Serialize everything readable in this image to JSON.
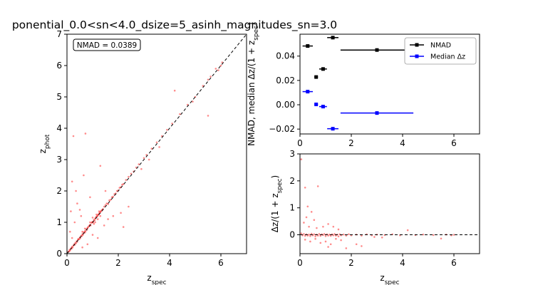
{
  "figure": {
    "title": "ponential_0.0<sn<4.0_dsize=5_asinh_magnitudes_sn=3.0"
  },
  "chart_data": [
    {
      "type": "scatter",
      "xlabel": "z_spec",
      "ylabel": "z_phot",
      "xlim": [
        0,
        7
      ],
      "ylim": [
        0,
        7
      ],
      "xticks": [
        0,
        2,
        4,
        6
      ],
      "yticks": [
        0,
        1,
        2,
        3,
        4,
        5,
        6,
        7
      ],
      "annotation": "NMAD = 0.0389",
      "annotation_placement": "top-left",
      "point_color": "#ff0000",
      "reference_line": {
        "x": [
          0,
          7
        ],
        "y": [
          0,
          7
        ],
        "style": "dashed",
        "color": "#000000"
      },
      "points": [
        {
          "x": 0.05,
          "y": 0.06
        },
        {
          "x": 0.08,
          "y": 0.07
        },
        {
          "x": 0.1,
          "y": 0.12
        },
        {
          "x": 0.12,
          "y": 0.1
        },
        {
          "x": 0.15,
          "y": 0.17
        },
        {
          "x": 0.18,
          "y": 0.16
        },
        {
          "x": 0.2,
          "y": 0.22
        },
        {
          "x": 0.22,
          "y": 0.2
        },
        {
          "x": 0.25,
          "y": 0.26
        },
        {
          "x": 0.28,
          "y": 0.3
        },
        {
          "x": 0.3,
          "y": 0.28
        },
        {
          "x": 0.33,
          "y": 0.35
        },
        {
          "x": 0.35,
          "y": 0.33
        },
        {
          "x": 0.38,
          "y": 0.4
        },
        {
          "x": 0.4,
          "y": 0.38
        },
        {
          "x": 0.43,
          "y": 0.45
        },
        {
          "x": 0.45,
          "y": 0.47
        },
        {
          "x": 0.48,
          "y": 0.46
        },
        {
          "x": 0.5,
          "y": 0.52
        },
        {
          "x": 0.52,
          "y": 0.5
        },
        {
          "x": 0.55,
          "y": 0.57
        },
        {
          "x": 0.58,
          "y": 0.56
        },
        {
          "x": 0.6,
          "y": 0.62
        },
        {
          "x": 0.62,
          "y": 0.6
        },
        {
          "x": 0.65,
          "y": 0.68
        },
        {
          "x": 0.68,
          "y": 0.66
        },
        {
          "x": 0.7,
          "y": 0.72
        },
        {
          "x": 0.72,
          "y": 0.7
        },
        {
          "x": 0.75,
          "y": 0.78
        },
        {
          "x": 0.78,
          "y": 0.76
        },
        {
          "x": 0.8,
          "y": 0.82
        },
        {
          "x": 0.82,
          "y": 0.84
        },
        {
          "x": 0.85,
          "y": 0.87
        },
        {
          "x": 0.88,
          "y": 0.9
        },
        {
          "x": 0.9,
          "y": 0.92
        },
        {
          "x": 0.92,
          "y": 0.9
        },
        {
          "x": 0.95,
          "y": 0.98
        },
        {
          "x": 0.98,
          "y": 1.0
        },
        {
          "x": 1.0,
          "y": 1.02
        },
        {
          "x": 1.02,
          "y": 1.0
        },
        {
          "x": 1.05,
          "y": 1.08
        },
        {
          "x": 1.08,
          "y": 1.06
        },
        {
          "x": 1.1,
          "y": 1.12
        },
        {
          "x": 1.12,
          "y": 1.15
        },
        {
          "x": 1.15,
          "y": 1.18
        },
        {
          "x": 1.18,
          "y": 1.2
        },
        {
          "x": 1.2,
          "y": 1.22
        },
        {
          "x": 1.22,
          "y": 1.25
        },
        {
          "x": 1.25,
          "y": 1.28
        },
        {
          "x": 1.28,
          "y": 1.3
        },
        {
          "x": 1.3,
          "y": 1.33
        },
        {
          "x": 1.32,
          "y": 1.35
        },
        {
          "x": 1.35,
          "y": 1.38
        },
        {
          "x": 1.38,
          "y": 1.4
        },
        {
          "x": 1.4,
          "y": 1.42
        },
        {
          "x": 1.0,
          "y": 1.15
        },
        {
          "x": 1.05,
          "y": 0.95
        },
        {
          "x": 1.1,
          "y": 1.0
        },
        {
          "x": 0.9,
          "y": 1.0
        },
        {
          "x": 1.2,
          "y": 1.1
        },
        {
          "x": 1.3,
          "y": 1.2
        },
        {
          "x": 1.25,
          "y": 1.35
        },
        {
          "x": 0.7,
          "y": 0.8
        },
        {
          "x": 0.6,
          "y": 0.7
        },
        {
          "x": 1.15,
          "y": 1.25
        },
        {
          "x": 1.45,
          "y": 1.5
        },
        {
          "x": 1.5,
          "y": 1.55
        },
        {
          "x": 1.55,
          "y": 1.6
        },
        {
          "x": 1.6,
          "y": 1.58
        },
        {
          "x": 1.65,
          "y": 1.7
        },
        {
          "x": 1.7,
          "y": 1.72
        },
        {
          "x": 1.75,
          "y": 1.8
        },
        {
          "x": 1.8,
          "y": 1.82
        },
        {
          "x": 1.85,
          "y": 1.9
        },
        {
          "x": 1.9,
          "y": 1.92
        },
        {
          "x": 1.95,
          "y": 2.0
        },
        {
          "x": 2.0,
          "y": 2.02
        },
        {
          "x": 2.05,
          "y": 2.1
        },
        {
          "x": 2.1,
          "y": 2.12
        },
        {
          "x": 2.15,
          "y": 2.2
        },
        {
          "x": 2.2,
          "y": 2.22
        },
        {
          "x": 2.3,
          "y": 2.35
        },
        {
          "x": 2.4,
          "y": 2.45
        },
        {
          "x": 2.5,
          "y": 2.55
        },
        {
          "x": 2.6,
          "y": 2.62
        },
        {
          "x": 2.7,
          "y": 2.75
        },
        {
          "x": 2.8,
          "y": 2.85
        },
        {
          "x": 3.0,
          "y": 3.05
        },
        {
          "x": 3.1,
          "y": 3.15
        },
        {
          "x": 3.3,
          "y": 3.35
        },
        {
          "x": 3.5,
          "y": 3.55
        },
        {
          "x": 3.7,
          "y": 3.75
        },
        {
          "x": 3.9,
          "y": 3.95
        },
        {
          "x": 4.1,
          "y": 4.15
        },
        {
          "x": 4.4,
          "y": 4.45
        },
        {
          "x": 4.7,
          "y": 4.75
        },
        {
          "x": 5.0,
          "y": 5.0
        },
        {
          "x": 5.3,
          "y": 5.35
        },
        {
          "x": 5.6,
          "y": 5.65
        },
        {
          "x": 5.8,
          "y": 5.9
        },
        {
          "x": 6.0,
          "y": 6.0
        },
        {
          "x": 5.9,
          "y": 5.85
        },
        {
          "x": 6.05,
          "y": 6.1
        },
        {
          "x": 5.5,
          "y": 5.55
        },
        {
          "x": 4.9,
          "y": 4.85
        },
        {
          "x": 0.25,
          "y": 3.75
        },
        {
          "x": 0.72,
          "y": 3.83
        },
        {
          "x": 0.2,
          "y": 2.3
        },
        {
          "x": 0.15,
          "y": 1.35
        },
        {
          "x": 0.3,
          "y": 1.0
        },
        {
          "x": 0.12,
          "y": 0.7
        },
        {
          "x": 0.55,
          "y": 1.2
        },
        {
          "x": 0.65,
          "y": 2.5
        },
        {
          "x": 0.4,
          "y": 1.6
        },
        {
          "x": 0.9,
          "y": 1.8
        },
        {
          "x": 1.3,
          "y": 2.8
        },
        {
          "x": 1.5,
          "y": 2.0
        },
        {
          "x": 1.2,
          "y": 0.5
        },
        {
          "x": 1.0,
          "y": 0.6
        },
        {
          "x": 1.8,
          "y": 1.2
        },
        {
          "x": 2.1,
          "y": 1.3
        },
        {
          "x": 2.4,
          "y": 1.5
        },
        {
          "x": 2.9,
          "y": 2.7
        },
        {
          "x": 3.2,
          "y": 3.0
        },
        {
          "x": 3.6,
          "y": 3.4
        },
        {
          "x": 4.2,
          "y": 5.2
        },
        {
          "x": 5.5,
          "y": 4.4
        },
        {
          "x": 0.35,
          "y": 2.0
        },
        {
          "x": 0.6,
          "y": 0.2
        },
        {
          "x": 0.8,
          "y": 0.3
        },
        {
          "x": 1.45,
          "y": 0.9
        },
        {
          "x": 1.6,
          "y": 1.1
        },
        {
          "x": 2.2,
          "y": 0.85
        },
        {
          "x": 0.5,
          "y": 1.4
        },
        {
          "x": 0.2,
          "y": 0.5
        }
      ]
    },
    {
      "type": "scatter",
      "xlabel": "",
      "ylabel": "NMAD, median Δz/(1 + z_spec)",
      "xlim": [
        0,
        7
      ],
      "ylim": [
        -0.024,
        0.058
      ],
      "xticks": [
        0,
        2,
        4,
        6
      ],
      "yticks": [
        -0.02,
        0.0,
        0.02,
        0.04
      ],
      "ytick_labels": [
        "−0.02",
        "0.00",
        "0.02",
        "0.04"
      ],
      "legend_placement": "top-right",
      "series": [
        {
          "name": "NMAD",
          "color": "#000000",
          "points": [
            {
              "x": 0.3,
              "y": 0.0483,
              "xerr": 0.2
            },
            {
              "x": 0.63,
              "y": 0.0228,
              "xerr": 0.07
            },
            {
              "x": 0.9,
              "y": 0.0294,
              "xerr": 0.15
            },
            {
              "x": 1.28,
              "y": 0.0552,
              "xerr": 0.22
            },
            {
              "x": 3.0,
              "y": 0.045,
              "xerr": 1.42
            }
          ]
        },
        {
          "name": "Median Δz",
          "color": "#0000ff",
          "points": [
            {
              "x": 0.3,
              "y": 0.0108,
              "xerr": 0.2
            },
            {
              "x": 0.63,
              "y": 0.0003,
              "xerr": 0.07
            },
            {
              "x": 0.9,
              "y": -0.0015,
              "xerr": 0.15
            },
            {
              "x": 1.28,
              "y": -0.0197,
              "xerr": 0.22
            },
            {
              "x": 3.0,
              "y": -0.0068,
              "xerr": 1.42
            }
          ]
        }
      ]
    },
    {
      "type": "scatter",
      "xlabel": "z_spec",
      "ylabel": "Δz/(1 + z_spec)",
      "xlim": [
        0,
        7
      ],
      "ylim": [
        -0.7,
        3.0
      ],
      "xticks": [
        0,
        2,
        4,
        6
      ],
      "yticks": [
        0,
        1,
        2,
        3
      ],
      "point_color": "#ff0000",
      "reference_line": {
        "y": 0,
        "style": "dashed",
        "color": "#000000"
      },
      "points": [
        {
          "x": 0.05,
          "y": 2.8
        },
        {
          "x": 0.2,
          "y": 1.75
        },
        {
          "x": 0.7,
          "y": 1.8
        },
        {
          "x": 0.3,
          "y": 1.05
        },
        {
          "x": 0.45,
          "y": 0.85
        },
        {
          "x": 0.25,
          "y": 0.65
        },
        {
          "x": 0.55,
          "y": 0.55
        },
        {
          "x": 0.15,
          "y": 0.45
        },
        {
          "x": 1.1,
          "y": 0.4
        },
        {
          "x": 0.9,
          "y": 0.3
        },
        {
          "x": 1.3,
          "y": 0.3
        },
        {
          "x": 0.35,
          "y": 0.3
        },
        {
          "x": 0.65,
          "y": 0.25
        },
        {
          "x": 1.5,
          "y": 0.2
        },
        {
          "x": 0.05,
          "y": 0.05
        },
        {
          "x": 0.1,
          "y": -0.02
        },
        {
          "x": 0.15,
          "y": 0.03
        },
        {
          "x": 0.2,
          "y": -0.04
        },
        {
          "x": 0.25,
          "y": 0.02
        },
        {
          "x": 0.3,
          "y": -0.03
        },
        {
          "x": 0.35,
          "y": 0.01
        },
        {
          "x": 0.4,
          "y": -0.05
        },
        {
          "x": 0.45,
          "y": 0.04
        },
        {
          "x": 0.5,
          "y": -0.02
        },
        {
          "x": 0.55,
          "y": 0.02
        },
        {
          "x": 0.6,
          "y": -0.06
        },
        {
          "x": 0.65,
          "y": 0.01
        },
        {
          "x": 0.7,
          "y": -0.03
        },
        {
          "x": 0.75,
          "y": 0.03
        },
        {
          "x": 0.8,
          "y": -0.04
        },
        {
          "x": 0.85,
          "y": 0.02
        },
        {
          "x": 0.9,
          "y": -0.01
        },
        {
          "x": 0.95,
          "y": 0.03
        },
        {
          "x": 1.0,
          "y": -0.05
        },
        {
          "x": 1.05,
          "y": 0.02
        },
        {
          "x": 1.1,
          "y": -0.03
        },
        {
          "x": 1.15,
          "y": 0.01
        },
        {
          "x": 1.2,
          "y": -0.04
        },
        {
          "x": 1.25,
          "y": 0.02
        },
        {
          "x": 1.3,
          "y": -0.02
        },
        {
          "x": 1.35,
          "y": 0.03
        },
        {
          "x": 1.4,
          "y": -0.03
        },
        {
          "x": 1.45,
          "y": 0.01
        },
        {
          "x": 1.5,
          "y": -0.06
        },
        {
          "x": 1.55,
          "y": 0.02
        },
        {
          "x": 1.6,
          "y": -0.02
        },
        {
          "x": 1.7,
          "y": 0.01
        },
        {
          "x": 1.8,
          "y": -0.03
        },
        {
          "x": 1.9,
          "y": 0.02
        },
        {
          "x": 2.0,
          "y": -0.02
        },
        {
          "x": 2.2,
          "y": 0.01
        },
        {
          "x": 2.4,
          "y": -0.03
        },
        {
          "x": 2.6,
          "y": 0.02
        },
        {
          "x": 2.8,
          "y": -0.02
        },
        {
          "x": 3.0,
          "y": 0.01
        },
        {
          "x": 3.3,
          "y": -0.01
        },
        {
          "x": 3.6,
          "y": 0.02
        },
        {
          "x": 3.9,
          "y": -0.02
        },
        {
          "x": 4.2,
          "y": 0.17
        },
        {
          "x": 4.5,
          "y": -0.01
        },
        {
          "x": 4.8,
          "y": 0.01
        },
        {
          "x": 5.2,
          "y": -0.01
        },
        {
          "x": 5.5,
          "y": -0.14
        },
        {
          "x": 5.7,
          "y": 0.01
        },
        {
          "x": 5.9,
          "y": -0.02
        },
        {
          "x": 6.0,
          "y": 0.0
        },
        {
          "x": 1.0,
          "y": -0.25
        },
        {
          "x": 1.2,
          "y": -0.35
        },
        {
          "x": 0.8,
          "y": -0.3
        },
        {
          "x": 1.6,
          "y": -0.2
        },
        {
          "x": 2.2,
          "y": -0.35
        },
        {
          "x": 2.4,
          "y": -0.42
        },
        {
          "x": 1.8,
          "y": -0.5
        },
        {
          "x": 1.1,
          "y": -0.45
        },
        {
          "x": 0.6,
          "y": -0.15
        },
        {
          "x": 0.4,
          "y": -0.25
        },
        {
          "x": 1.4,
          "y": -0.15
        },
        {
          "x": 2.9,
          "y": -0.08
        },
        {
          "x": 3.2,
          "y": -0.1
        },
        {
          "x": 0.2,
          "y": -0.18
        }
      ]
    }
  ]
}
